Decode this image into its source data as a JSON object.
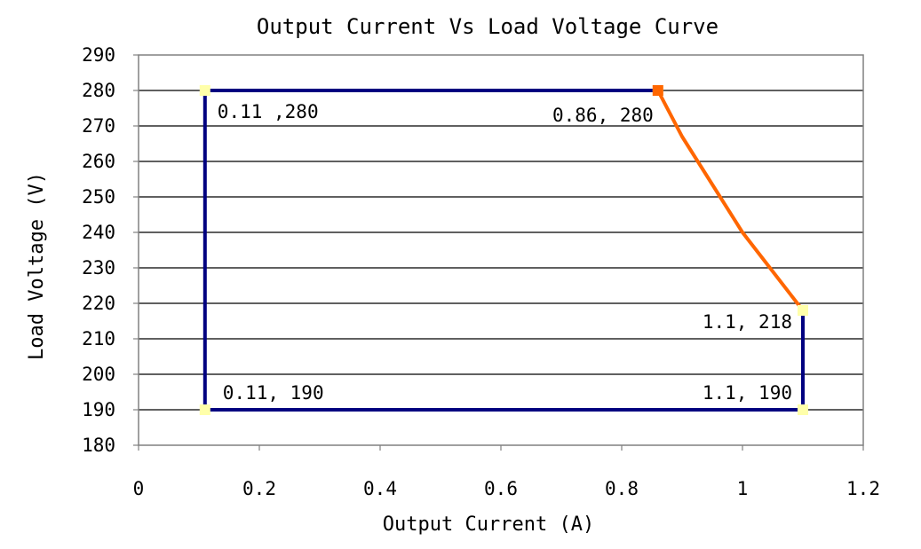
{
  "chart_data": {
    "type": "line",
    "title": "Output Current Vs Load Voltage Curve",
    "xlabel": "Output Current (A)",
    "ylabel": "Load Voltage (V)",
    "xlim": [
      0,
      1.2
    ],
    "ylim": [
      180,
      290
    ],
    "xticks": [
      0,
      0.2,
      0.4,
      0.6,
      0.8,
      1,
      1.2
    ],
    "xtick_labels": [
      "0",
      "0.2",
      "0.4",
      "0.6",
      "0.8",
      "1",
      "1.2"
    ],
    "yticks": [
      180,
      190,
      200,
      210,
      220,
      230,
      240,
      250,
      260,
      270,
      280,
      290
    ],
    "ytick_labels": [
      "180",
      "190",
      "200",
      "210",
      "220",
      "230",
      "240",
      "250",
      "260",
      "270",
      "280",
      "290"
    ],
    "grid": "horizontal",
    "series": [
      {
        "color": "#000080",
        "marker_color": "#ffffaa",
        "points": [
          {
            "x": 0.86,
            "y": 280
          },
          {
            "x": 0.11,
            "y": 280
          },
          {
            "x": 0.11,
            "y": 190
          },
          {
            "x": 1.1,
            "y": 190
          },
          {
            "x": 1.1,
            "y": 218
          }
        ]
      },
      {
        "color": "#ff6600",
        "marker_color": "#ff6600",
        "points": [
          {
            "x": 0.86,
            "y": 280
          },
          {
            "x": 0.9,
            "y": 267
          },
          {
            "x": 1.0,
            "y": 240
          },
          {
            "x": 1.1,
            "y": 218
          }
        ]
      }
    ],
    "data_labels": [
      {
        "text": "0.11 ,280",
        "x": 0.11,
        "y": 280
      },
      {
        "text": "0.86, 280",
        "x": 0.86,
        "y": 280
      },
      {
        "text": "1.1, 218",
        "x": 1.1,
        "y": 218
      },
      {
        "text": "0.11, 190",
        "x": 0.11,
        "y": 190
      },
      {
        "text": "1.1, 190",
        "x": 1.1,
        "y": 190
      }
    ]
  }
}
